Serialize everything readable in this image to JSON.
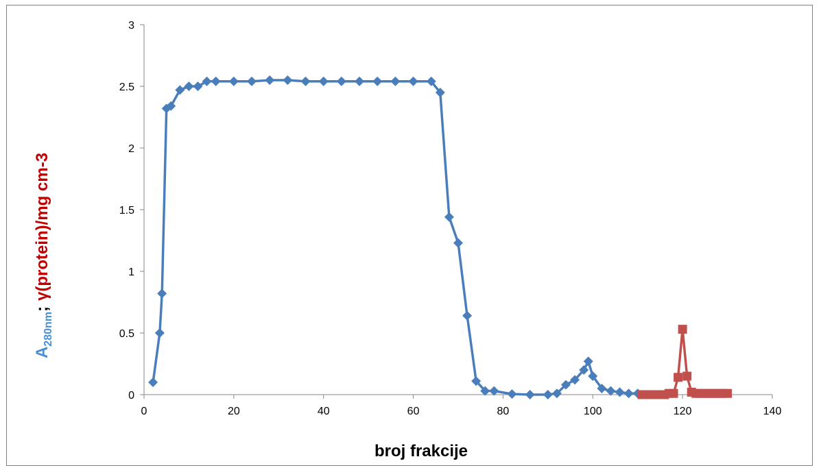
{
  "chart_data": {
    "type": "line",
    "xlabel": "broj frakcije",
    "ylabel_parts": {
      "a_main": "A",
      "a_sub": "280nm",
      "separator": ";",
      "gamma_part": "γ(protein)/mg cm-3"
    },
    "xlim": [
      0,
      140
    ],
    "ylim": [
      0,
      3
    ],
    "x_ticks": [
      0,
      20,
      40,
      60,
      80,
      100,
      120,
      140
    ],
    "y_ticks": [
      0,
      0.5,
      1,
      1.5,
      2,
      2.5,
      3
    ],
    "grid": false,
    "legend": "none",
    "series": [
      {
        "marker": "diamond",
        "color": "#4a7ebb",
        "x": [
          2,
          3.5,
          4,
          5,
          6,
          8,
          10,
          12,
          14,
          16,
          20,
          24,
          28,
          32,
          36,
          40,
          44,
          48,
          52,
          56,
          60,
          64,
          66,
          68,
          70,
          72,
          74,
          76,
          78,
          82,
          86,
          90,
          92,
          94,
          96,
          98,
          99,
          100,
          102,
          104,
          106,
          108,
          110
        ],
        "values": [
          0.1,
          0.5,
          0.82,
          2.32,
          2.34,
          2.47,
          2.5,
          2.5,
          2.54,
          2.54,
          2.54,
          2.54,
          2.55,
          2.55,
          2.54,
          2.54,
          2.54,
          2.54,
          2.54,
          2.54,
          2.54,
          2.54,
          2.45,
          1.44,
          1.23,
          0.64,
          0.11,
          0.03,
          0.03,
          0.005,
          0.0,
          0.0,
          0.01,
          0.08,
          0.12,
          0.2,
          0.27,
          0.15,
          0.05,
          0.03,
          0.02,
          0.01,
          0.01
        ]
      },
      {
        "marker": "square",
        "color": "#c0504d",
        "x": [
          111,
          112,
          113,
          114,
          115,
          116,
          117,
          118,
          119,
          120,
          121,
          122,
          123,
          124,
          125,
          126,
          127,
          128,
          129,
          130
        ],
        "values": [
          0.0,
          0.0,
          0.0,
          0.0,
          0.0,
          0.0,
          0.01,
          0.01,
          0.14,
          0.53,
          0.15,
          0.02,
          0.01,
          0.01,
          0.01,
          0.01,
          0.01,
          0.01,
          0.01,
          0.01
        ]
      }
    ],
    "colors": {
      "a_label": "#4a8fd4",
      "gamma_label": "#c00000",
      "axis": "#868686"
    }
  }
}
